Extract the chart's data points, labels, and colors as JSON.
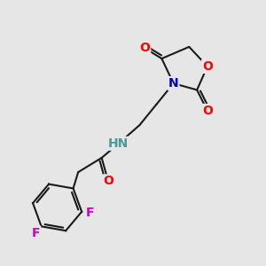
{
  "bg_color": "#e6e6e6",
  "bond_color": "#1a1a1a",
  "bond_width": 1.5,
  "atom_colors": {
    "O": "#ff0000",
    "N_ring": "#0000cc",
    "N_amide": "#4d9999",
    "F": "#cc00cc",
    "C": "#1a1a1a"
  },
  "font_size_atom": 8.5
}
